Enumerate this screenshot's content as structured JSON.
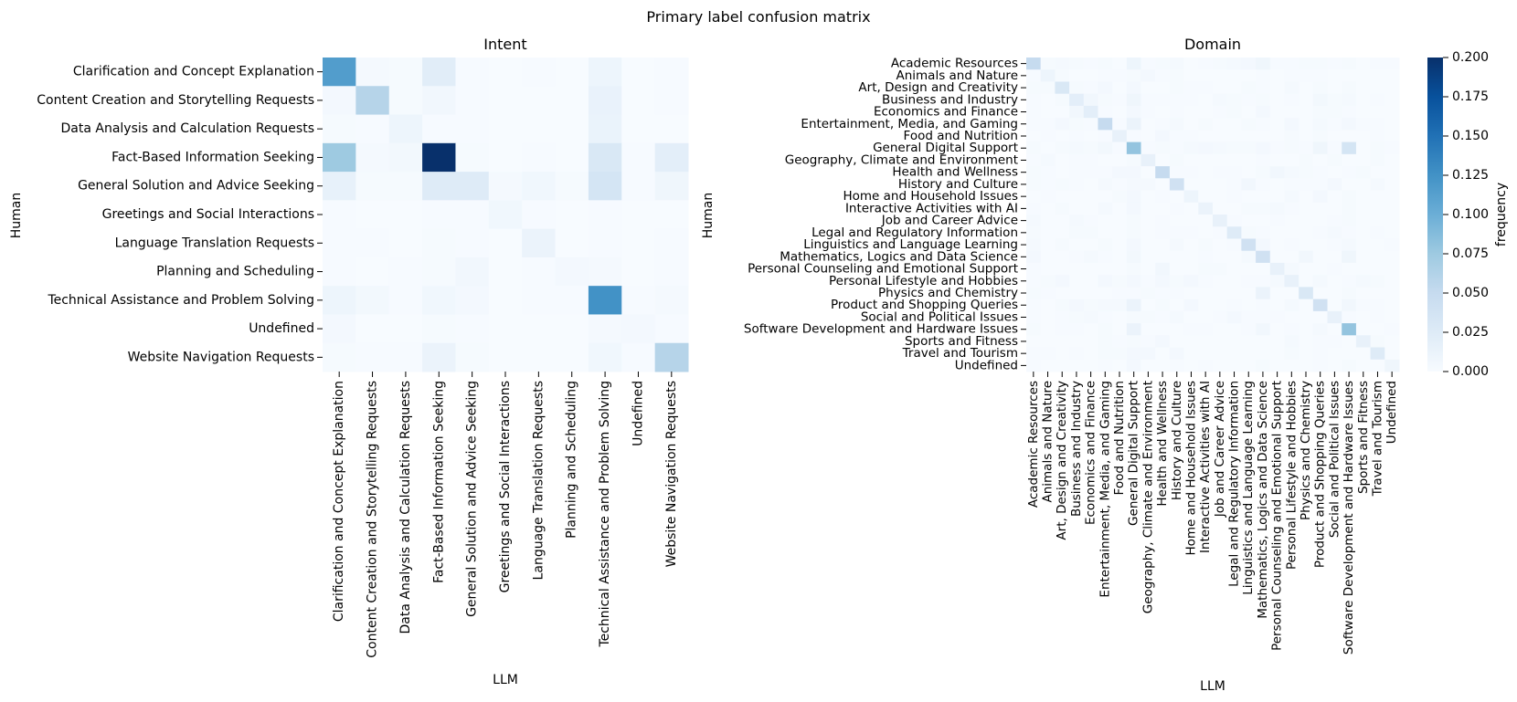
{
  "suptitle": "Primary label confusion matrix",
  "colors": {
    "low": "#f7fbff",
    "high": "#08306b"
  },
  "chart_data": [
    {
      "type": "heatmap",
      "title": "Intent",
      "xlabel": "LLM",
      "ylabel": "Human",
      "vmin": 0,
      "vmax": 0.2,
      "row_labels": [
        "Clarification and Concept Explanation",
        "Content Creation and Storytelling Requests",
        "Data Analysis and Calculation Requests",
        "Fact-Based Information Seeking",
        "General Solution and Advice Seeking",
        "Greetings and Social Interactions",
        "Language Translation Requests",
        "Planning and Scheduling",
        "Technical Assistance and Problem Solving",
        "Undefined",
        "Website Navigation Requests"
      ],
      "col_labels": [
        "Clarification and Concept Explanation",
        "Content Creation and Storytelling Requests",
        "Data Analysis and Calculation Requests",
        "Fact-Based Information Seeking",
        "General Solution and Advice Seeking",
        "Greetings and Social Interactions",
        "Language Translation Requests",
        "Planning and Scheduling",
        "Technical Assistance and Problem Solving",
        "Undefined",
        "Website Navigation Requests"
      ],
      "values": [
        [
          0.115,
          0.003,
          0.002,
          0.022,
          0.001,
          0.0,
          0.001,
          0.0,
          0.01,
          0.0,
          0.001
        ],
        [
          0.004,
          0.06,
          0.002,
          0.006,
          0.001,
          0.0,
          0.0,
          0.0,
          0.014,
          0.0,
          0.001
        ],
        [
          0.002,
          0.001,
          0.01,
          0.001,
          0.001,
          0.0,
          0.0,
          0.0,
          0.013,
          0.0,
          0.0
        ],
        [
          0.075,
          0.003,
          0.005,
          0.2,
          0.002,
          0.0,
          0.001,
          0.0,
          0.03,
          0.001,
          0.02
        ],
        [
          0.016,
          0.002,
          0.002,
          0.025,
          0.025,
          0.003,
          0.007,
          0.002,
          0.035,
          0.001,
          0.008
        ],
        [
          0.001,
          0.0,
          0.0,
          0.001,
          0.001,
          0.007,
          0.001,
          0.0,
          0.001,
          0.0,
          0.0
        ],
        [
          0.001,
          0.001,
          0.0,
          0.002,
          0.001,
          0.0,
          0.012,
          0.0,
          0.001,
          0.0,
          0.001
        ],
        [
          0.001,
          0.0,
          0.001,
          0.002,
          0.006,
          0.0,
          0.001,
          0.004,
          0.003,
          0.0,
          0.001
        ],
        [
          0.01,
          0.005,
          0.001,
          0.007,
          0.004,
          0.0,
          0.001,
          0.001,
          0.125,
          0.001,
          0.003
        ],
        [
          0.004,
          0.0,
          0.0,
          0.002,
          0.001,
          0.0,
          0.0,
          0.0,
          0.003,
          0.004,
          0.001
        ],
        [
          0.002,
          0.001,
          0.001,
          0.012,
          0.002,
          0.0,
          0.0,
          0.0,
          0.007,
          0.001,
          0.06
        ]
      ]
    },
    {
      "type": "heatmap",
      "title": "Domain",
      "xlabel": "LLM",
      "ylabel": "Human",
      "vmin": 0,
      "vmax": 0.2,
      "colorbar_label": "frequency",
      "colorbar_ticks": [
        "0.000",
        "0.025",
        "0.050",
        "0.075",
        "0.100",
        "0.125",
        "0.150",
        "0.175",
        "0.200"
      ],
      "row_labels": [
        "Academic Resources",
        "Animals and Nature",
        "Art, Design and Creativity",
        "Business and Industry",
        "Economics and Finance",
        "Entertainment, Media, and Gaming",
        "Food and Nutrition",
        "General Digital Support",
        "Geography, Climate and Environment",
        "Health and Wellness",
        "History and Culture",
        "Home and Household Issues",
        "Interactive Activities with AI",
        "Job and Career Advice",
        "Legal and Regulatory Information",
        "Linguistics and Language Learning",
        "Mathematics, Logics and Data Science",
        "Personal Counseling and Emotional Support",
        "Personal Lifestyle and Hobbies",
        "Physics and Chemistry",
        "Product and Shopping Queries",
        "Social and Political Issues",
        "Software Development and Hardware Issues",
        "Sports and Fitness",
        "Travel and Tourism",
        "Undefined"
      ],
      "col_labels": [
        "Academic Resources",
        "Animals and Nature",
        "Art, Design and Creativity",
        "Business and Industry",
        "Economics and Finance",
        "Entertainment, Media, and Gaming",
        "Food and Nutrition",
        "General Digital Support",
        "Geography, Climate and Environment",
        "Health and Wellness",
        "History and Culture",
        "Home and Household Issues",
        "Interactive Activities with AI",
        "Job and Career Advice",
        "Legal and Regulatory Information",
        "Linguistics and Language Learning",
        "Mathematics, Logics and Data Science",
        "Personal Counseling and Emotional Support",
        "Personal Lifestyle and Hobbies",
        "Physics and Chemistry",
        "Product and Shopping Queries",
        "Social and Political Issues",
        "Software Development and Hardware Issues",
        "Sports and Fitness",
        "Travel and Tourism",
        "Undefined"
      ],
      "values": [
        [
          0.05,
          0.002,
          0.003,
          0.002,
          0.001,
          0.002,
          0.0,
          0.01,
          0.001,
          0.002,
          0.003,
          0.0,
          0.001,
          0.002,
          0.003,
          0.004,
          0.008,
          0.001,
          0.001,
          0.002,
          0.002,
          0.001,
          0.002,
          0.0,
          0.001,
          0.001
        ],
        [
          0.001,
          0.01,
          0.002,
          0.0,
          0.0,
          0.001,
          0.001,
          0.002,
          0.004,
          0.001,
          0.002,
          0.0,
          0.0,
          0.0,
          0.0,
          0.0,
          0.001,
          0.0,
          0.001,
          0.001,
          0.001,
          0.0,
          0.0,
          0.0,
          0.0,
          0.0
        ],
        [
          0.002,
          0.002,
          0.03,
          0.002,
          0.001,
          0.004,
          0.0,
          0.004,
          0.0,
          0.0,
          0.002,
          0.001,
          0.001,
          0.0,
          0.0,
          0.002,
          0.001,
          0.0,
          0.003,
          0.0,
          0.002,
          0.0,
          0.002,
          0.0,
          0.0,
          0.0
        ],
        [
          0.001,
          0.0,
          0.002,
          0.02,
          0.006,
          0.002,
          0.001,
          0.008,
          0.001,
          0.001,
          0.001,
          0.001,
          0.0,
          0.003,
          0.002,
          0.001,
          0.002,
          0.0,
          0.001,
          0.0,
          0.005,
          0.002,
          0.003,
          0.0,
          0.001,
          0.0
        ],
        [
          0.001,
          0.0,
          0.0,
          0.006,
          0.02,
          0.001,
          0.0,
          0.004,
          0.001,
          0.0,
          0.001,
          0.0,
          0.0,
          0.001,
          0.002,
          0.0,
          0.004,
          0.0,
          0.0,
          0.0,
          0.002,
          0.002,
          0.001,
          0.0,
          0.0,
          0.0
        ],
        [
          0.001,
          0.001,
          0.004,
          0.002,
          0.001,
          0.05,
          0.001,
          0.012,
          0.0,
          0.001,
          0.003,
          0.0,
          0.002,
          0.0,
          0.0,
          0.002,
          0.001,
          0.0,
          0.004,
          0.0,
          0.003,
          0.001,
          0.004,
          0.001,
          0.001,
          0.0
        ],
        [
          0.0,
          0.001,
          0.0,
          0.001,
          0.0,
          0.001,
          0.015,
          0.001,
          0.0,
          0.004,
          0.001,
          0.001,
          0.0,
          0.0,
          0.0,
          0.0,
          0.0,
          0.0,
          0.002,
          0.0,
          0.002,
          0.0,
          0.0,
          0.0,
          0.001,
          0.0
        ],
        [
          0.002,
          0.0,
          0.002,
          0.003,
          0.002,
          0.005,
          0.001,
          0.08,
          0.001,
          0.002,
          0.001,
          0.003,
          0.004,
          0.003,
          0.002,
          0.002,
          0.004,
          0.001,
          0.002,
          0.001,
          0.008,
          0.001,
          0.035,
          0.0,
          0.002,
          0.001
        ],
        [
          0.001,
          0.003,
          0.0,
          0.001,
          0.001,
          0.0,
          0.0,
          0.002,
          0.015,
          0.0,
          0.002,
          0.0,
          0.0,
          0.0,
          0.0,
          0.0,
          0.001,
          0.0,
          0.0,
          0.002,
          0.0,
          0.002,
          0.0,
          0.0,
          0.002,
          0.0
        ],
        [
          0.002,
          0.001,
          0.0,
          0.001,
          0.001,
          0.001,
          0.004,
          0.004,
          0.0,
          0.05,
          0.001,
          0.001,
          0.0,
          0.001,
          0.001,
          0.0,
          0.002,
          0.006,
          0.003,
          0.002,
          0.001,
          0.0,
          0.001,
          0.002,
          0.0,
          0.0
        ],
        [
          0.002,
          0.001,
          0.002,
          0.001,
          0.0,
          0.003,
          0.001,
          0.003,
          0.003,
          0.0,
          0.04,
          0.0,
          0.0,
          0.0,
          0.001,
          0.006,
          0.001,
          0.0,
          0.001,
          0.001,
          0.001,
          0.004,
          0.0,
          0.0,
          0.003,
          0.0
        ],
        [
          0.0,
          0.001,
          0.0,
          0.0,
          0.0,
          0.0,
          0.002,
          0.004,
          0.0,
          0.001,
          0.0,
          0.01,
          0.0,
          0.0,
          0.001,
          0.0,
          0.0,
          0.0,
          0.003,
          0.0,
          0.004,
          0.0,
          0.002,
          0.0,
          0.0,
          0.0
        ],
        [
          0.001,
          0.0,
          0.002,
          0.0,
          0.0,
          0.003,
          0.0,
          0.004,
          0.0,
          0.0,
          0.001,
          0.0,
          0.012,
          0.0,
          0.0,
          0.002,
          0.002,
          0.003,
          0.001,
          0.0,
          0.0,
          0.0,
          0.002,
          0.0,
          0.0,
          0.0
        ],
        [
          0.003,
          0.0,
          0.0,
          0.003,
          0.001,
          0.0,
          0.0,
          0.002,
          0.0,
          0.001,
          0.0,
          0.0,
          0.0,
          0.015,
          0.001,
          0.0,
          0.0,
          0.001,
          0.0,
          0.0,
          0.0,
          0.001,
          0.002,
          0.0,
          0.0,
          0.0
        ],
        [
          0.002,
          0.0,
          0.0,
          0.002,
          0.002,
          0.0,
          0.0,
          0.002,
          0.0,
          0.001,
          0.001,
          0.001,
          0.0,
          0.001,
          0.025,
          0.002,
          0.001,
          0.0,
          0.0,
          0.0,
          0.001,
          0.003,
          0.001,
          0.0,
          0.001,
          0.0
        ],
        [
          0.003,
          0.0,
          0.002,
          0.0,
          0.0,
          0.002,
          0.0,
          0.004,
          0.0,
          0.0,
          0.003,
          0.0,
          0.002,
          0.0,
          0.001,
          0.04,
          0.004,
          0.0,
          0.001,
          0.0,
          0.0,
          0.001,
          0.003,
          0.0,
          0.0,
          0.001
        ],
        [
          0.004,
          0.0,
          0.0,
          0.001,
          0.003,
          0.001,
          0.0,
          0.005,
          0.0,
          0.0,
          0.0,
          0.0,
          0.001,
          0.0,
          0.0,
          0.003,
          0.04,
          0.0,
          0.0,
          0.006,
          0.0,
          0.0,
          0.008,
          0.0,
          0.0,
          0.0
        ],
        [
          0.001,
          0.0,
          0.0,
          0.0,
          0.0,
          0.0,
          0.0,
          0.002,
          0.0,
          0.006,
          0.0,
          0.0,
          0.002,
          0.002,
          0.0,
          0.0,
          0.0,
          0.015,
          0.003,
          0.0,
          0.0,
          0.001,
          0.0,
          0.0,
          0.0,
          0.0
        ],
        [
          0.001,
          0.002,
          0.004,
          0.0,
          0.0,
          0.004,
          0.002,
          0.004,
          0.001,
          0.004,
          0.002,
          0.004,
          0.001,
          0.0,
          0.0,
          0.001,
          0.001,
          0.003,
          0.015,
          0.0,
          0.003,
          0.0,
          0.001,
          0.003,
          0.002,
          0.0
        ],
        [
          0.002,
          0.001,
          0.0,
          0.0,
          0.0,
          0.0,
          0.001,
          0.001,
          0.002,
          0.001,
          0.001,
          0.0,
          0.0,
          0.0,
          0.0,
          0.0,
          0.012,
          0.0,
          0.0,
          0.03,
          0.0,
          0.0,
          0.002,
          0.0,
          0.0,
          0.0
        ],
        [
          0.001,
          0.0,
          0.002,
          0.004,
          0.002,
          0.003,
          0.003,
          0.012,
          0.0,
          0.002,
          0.0,
          0.004,
          0.0,
          0.0,
          0.001,
          0.0,
          0.001,
          0.0,
          0.003,
          0.0,
          0.04,
          0.0,
          0.006,
          0.001,
          0.001,
          0.0
        ],
        [
          0.001,
          0.0,
          0.001,
          0.002,
          0.003,
          0.001,
          0.0,
          0.002,
          0.002,
          0.001,
          0.003,
          0.0,
          0.0,
          0.001,
          0.004,
          0.001,
          0.001,
          0.001,
          0.0,
          0.0,
          0.0,
          0.015,
          0.001,
          0.0,
          0.001,
          0.0
        ],
        [
          0.002,
          0.0,
          0.001,
          0.001,
          0.0,
          0.002,
          0.0,
          0.012,
          0.0,
          0.0,
          0.0,
          0.001,
          0.001,
          0.0,
          0.0,
          0.001,
          0.006,
          0.0,
          0.001,
          0.0,
          0.003,
          0.0,
          0.08,
          0.0,
          0.0,
          0.001
        ],
        [
          0.0,
          0.0,
          0.0,
          0.0,
          0.0,
          0.002,
          0.001,
          0.002,
          0.001,
          0.004,
          0.0,
          0.0,
          0.0,
          0.0,
          0.0,
          0.0,
          0.0,
          0.0,
          0.003,
          0.0,
          0.001,
          0.001,
          0.0,
          0.015,
          0.002,
          0.0
        ],
        [
          0.001,
          0.001,
          0.0,
          0.001,
          0.0,
          0.002,
          0.002,
          0.004,
          0.004,
          0.0,
          0.004,
          0.0,
          0.0,
          0.0,
          0.0,
          0.0,
          0.0,
          0.0,
          0.002,
          0.0,
          0.001,
          0.0,
          0.0,
          0.0,
          0.025,
          0.0
        ],
        [
          0.001,
          0.0,
          0.0,
          0.0,
          0.0,
          0.001,
          0.0,
          0.004,
          0.0,
          0.0,
          0.001,
          0.0,
          0.001,
          0.0,
          0.0,
          0.0,
          0.002,
          0.0,
          0.0,
          0.0,
          0.001,
          0.0,
          0.002,
          0.0,
          0.0,
          0.008
        ]
      ]
    }
  ]
}
